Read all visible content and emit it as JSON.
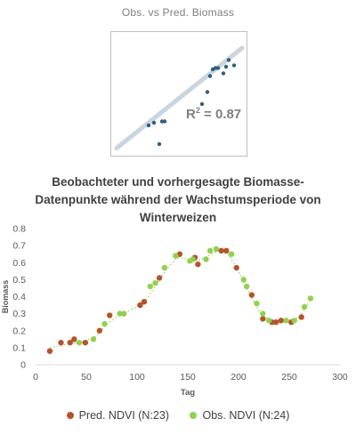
{
  "chart_data": [
    {
      "type": "scatter",
      "title": "Obs. vs Pred. Biomass",
      "annotation": "R² = 0.87",
      "annotation_base": "R",
      "annotation_sup": "2",
      "annotation_rest": " = 0.87",
      "xlabel": "",
      "ylabel": "",
      "axes_visible": false,
      "points": [
        {
          "x": 0.12,
          "y": 0.3
        },
        {
          "x": 0.14,
          "y": 0.32
        },
        {
          "x": 0.17,
          "y": 0.33
        },
        {
          "x": 0.18,
          "y": 0.33
        },
        {
          "x": 0.16,
          "y": 0.16
        },
        {
          "x": 0.32,
          "y": 0.46
        },
        {
          "x": 0.34,
          "y": 0.55
        },
        {
          "x": 0.35,
          "y": 0.67
        },
        {
          "x": 0.36,
          "y": 0.72
        },
        {
          "x": 0.37,
          "y": 0.73
        },
        {
          "x": 0.38,
          "y": 0.73
        },
        {
          "x": 0.4,
          "y": 0.69
        },
        {
          "x": 0.41,
          "y": 0.74
        },
        {
          "x": 0.42,
          "y": 0.79
        },
        {
          "x": 0.44,
          "y": 0.75
        }
      ],
      "trendline": {
        "x1": 0.0,
        "y1": 0.13,
        "x2": 0.47,
        "y2": 0.88,
        "color": "#c9d6df"
      },
      "point_color": "#2e5f80"
    },
    {
      "type": "scatter",
      "title": "Beobachteter und vorhergesagte Biomasse-Datenpunkte während der Wachstumsperiode von Winterweizen",
      "title_lines": [
        "Beobachteter und vorhergesagte Biomasse-",
        "Datenpunkte während der Wachstumsperiode von",
        "Winterweizen"
      ],
      "xlabel": "Tag",
      "ylabel": "Biomass",
      "xlim": [
        0,
        300
      ],
      "ylim": [
        0,
        0.8
      ],
      "xticks": [
        0,
        50,
        100,
        150,
        200,
        250,
        300
      ],
      "yticks": [
        0,
        0.1,
        0.2,
        0.3,
        0.4,
        0.5,
        0.6,
        0.7,
        0.8
      ],
      "grid": false,
      "legend_position": "bottom",
      "series": [
        {
          "name": "Pred. NDVI (N:23)",
          "color": "#b5532a",
          "points": [
            [
              14,
              0.08
            ],
            [
              25,
              0.13
            ],
            [
              34,
              0.13
            ],
            [
              38,
              0.15
            ],
            [
              49,
              0.13
            ],
            [
              63,
              0.2
            ],
            [
              73,
              0.29
            ],
            [
              103,
              0.35
            ],
            [
              107,
              0.37
            ],
            [
              122,
              0.51
            ],
            [
              142,
              0.65
            ],
            [
              157,
              0.63
            ],
            [
              160,
              0.59
            ],
            [
              183,
              0.67
            ],
            [
              188,
              0.67
            ],
            [
              198,
              0.57
            ],
            [
              213,
              0.41
            ],
            [
              224,
              0.27
            ],
            [
              233,
              0.25
            ],
            [
              237,
              0.25
            ],
            [
              242,
              0.26
            ],
            [
              252,
              0.25
            ],
            [
              262,
              0.28
            ]
          ]
        },
        {
          "name": "Obs. NDVI (N:24)",
          "color": "#92d050",
          "points": [
            [
              43,
              0.13
            ],
            [
              57,
              0.15
            ],
            [
              68,
              0.24
            ],
            [
              83,
              0.3
            ],
            [
              87,
              0.3
            ],
            [
              113,
              0.46
            ],
            [
              118,
              0.48
            ],
            [
              127,
              0.57
            ],
            [
              138,
              0.64
            ],
            [
              152,
              0.61
            ],
            [
              155,
              0.62
            ],
            [
              168,
              0.62
            ],
            [
              172,
              0.67
            ],
            [
              178,
              0.68
            ],
            [
              193,
              0.65
            ],
            [
              205,
              0.5
            ],
            [
              208,
              0.46
            ],
            [
              218,
              0.36
            ],
            [
              224,
              0.3
            ],
            [
              230,
              0.26
            ],
            [
              247,
              0.26
            ],
            [
              255,
              0.26
            ],
            [
              265,
              0.34
            ],
            [
              271,
              0.39
            ]
          ]
        }
      ],
      "trend": {
        "color": "#92d050",
        "points": [
          [
            14,
            0.1
          ],
          [
            30,
            0.12
          ],
          [
            45,
            0.13
          ],
          [
            60,
            0.17
          ],
          [
            70,
            0.24
          ],
          [
            85,
            0.3
          ],
          [
            100,
            0.34
          ],
          [
            110,
            0.39
          ],
          [
            120,
            0.48
          ],
          [
            130,
            0.57
          ],
          [
            140,
            0.63
          ],
          [
            150,
            0.62
          ],
          [
            160,
            0.61
          ],
          [
            170,
            0.64
          ],
          [
            180,
            0.67
          ],
          [
            190,
            0.65
          ],
          [
            200,
            0.55
          ],
          [
            210,
            0.43
          ],
          [
            220,
            0.32
          ],
          [
            230,
            0.26
          ],
          [
            240,
            0.25
          ],
          [
            250,
            0.26
          ],
          [
            260,
            0.28
          ],
          [
            270,
            0.37
          ]
        ]
      }
    }
  ]
}
